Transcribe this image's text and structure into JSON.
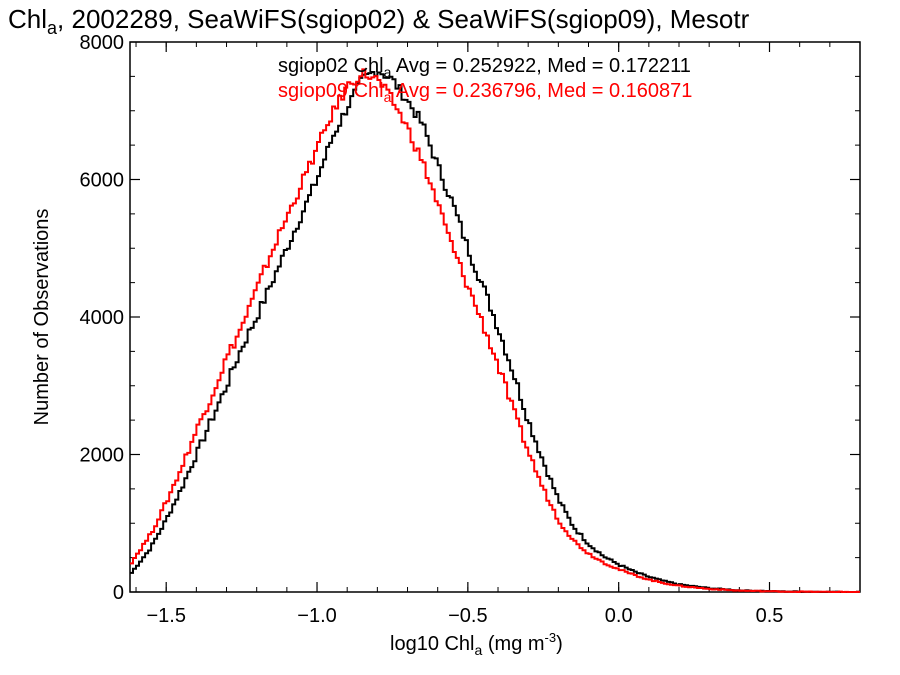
{
  "chart_data": {
    "type": "line",
    "title": {
      "prefix": "Chl",
      "sub": "a",
      "suffix": ", 2002289, SeaWiFS(sgiop02) & SeaWiFS(sgiop09), Mesotr"
    },
    "xlabel": {
      "prefix": "log10 Chl",
      "sub": "a",
      "middle": " (mg m",
      "sup": "-3",
      "suffix": ")"
    },
    "ylabel": "Number of Observations",
    "xlim": [
      -1.62,
      0.8
    ],
    "ylim": [
      0,
      8000
    ],
    "x_ticks": [
      -1.5,
      -1.0,
      -0.5,
      0.0,
      0.5
    ],
    "x_tick_labels": [
      "−1.5",
      "−1.0",
      "−0.5",
      "0.0",
      "0.5"
    ],
    "y_ticks": [
      0,
      2000,
      4000,
      6000,
      8000
    ],
    "y_tick_labels": [
      "0",
      "2000",
      "4000",
      "6000",
      "8000"
    ],
    "grid": false,
    "legend_placement": "top-center",
    "series": [
      {
        "name": "sgiop02",
        "color": "#000000",
        "legend": {
          "prefix": "sgiop02 Chl",
          "sub": "a",
          "suffix": " Avg = 0.252922, Med = 0.172211"
        },
        "x": [
          -1.62,
          -1.55,
          -1.5,
          -1.45,
          -1.4,
          -1.35,
          -1.3,
          -1.25,
          -1.2,
          -1.15,
          -1.1,
          -1.05,
          -1.0,
          -0.95,
          -0.9,
          -0.85,
          -0.8,
          -0.75,
          -0.7,
          -0.65,
          -0.6,
          -0.55,
          -0.5,
          -0.45,
          -0.4,
          -0.35,
          -0.3,
          -0.25,
          -0.2,
          -0.15,
          -0.1,
          -0.05,
          0.0,
          0.05,
          0.1,
          0.15,
          0.2,
          0.3,
          0.4,
          0.5,
          0.6,
          0.7,
          0.8
        ],
        "values": [
          250,
          650,
          1050,
          1500,
          2000,
          2500,
          3000,
          3550,
          4000,
          4500,
          5000,
          5500,
          6000,
          6600,
          7050,
          7450,
          7600,
          7450,
          7150,
          6800,
          6200,
          5650,
          5000,
          4450,
          3850,
          3200,
          2500,
          1900,
          1350,
          950,
          700,
          520,
          400,
          300,
          220,
          160,
          110,
          55,
          25,
          12,
          5,
          2,
          0
        ]
      },
      {
        "name": "sgiop09",
        "color": "#ff0000",
        "legend": {
          "prefix": "sgiop09 Chl",
          "sub": "a",
          "suffix": " Avg = 0.236796, Med = 0.160871"
        },
        "x": [
          -1.62,
          -1.55,
          -1.5,
          -1.45,
          -1.4,
          -1.35,
          -1.3,
          -1.25,
          -1.2,
          -1.15,
          -1.1,
          -1.05,
          -1.0,
          -0.95,
          -0.9,
          -0.85,
          -0.8,
          -0.75,
          -0.7,
          -0.65,
          -0.6,
          -0.55,
          -0.5,
          -0.45,
          -0.4,
          -0.35,
          -0.3,
          -0.25,
          -0.2,
          -0.15,
          -0.1,
          -0.05,
          0.0,
          0.05,
          0.1,
          0.15,
          0.2,
          0.3,
          0.4,
          0.5,
          0.6,
          0.7,
          0.8
        ],
        "values": [
          400,
          850,
          1300,
          1800,
          2350,
          2850,
          3400,
          3850,
          4400,
          4950,
          5450,
          5950,
          6450,
          6950,
          7350,
          7550,
          7450,
          7150,
          6750,
          6250,
          5650,
          5000,
          4450,
          3900,
          3300,
          2650,
          2050,
          1500,
          1050,
          750,
          560,
          430,
          330,
          250,
          180,
          130,
          90,
          45,
          20,
          10,
          4,
          2,
          0
        ]
      }
    ]
  }
}
